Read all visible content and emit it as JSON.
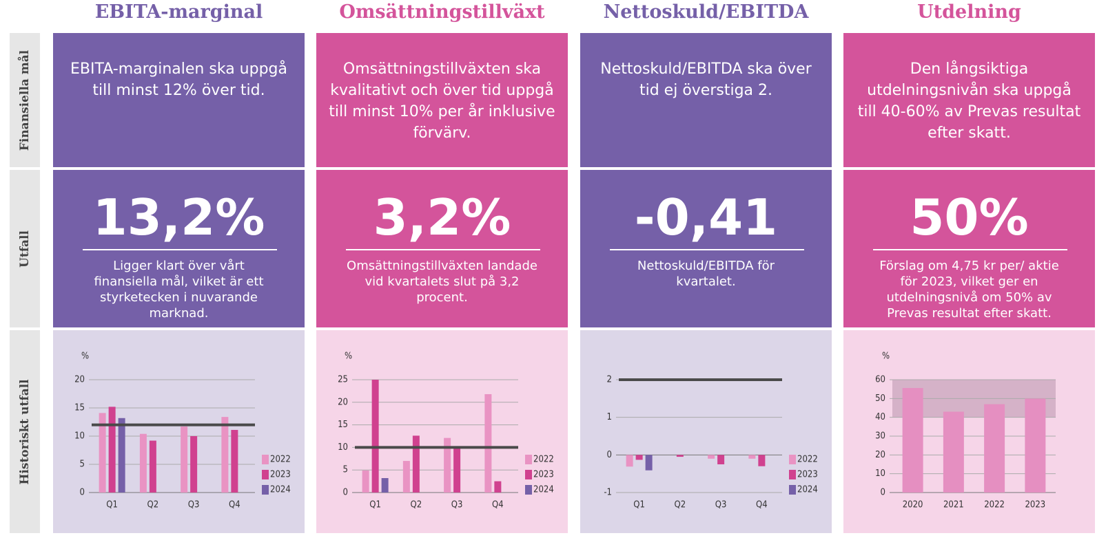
{
  "row_labels": [
    "Finansiella mål",
    "Utfall",
    "Historiskt utfall"
  ],
  "columns": [
    {
      "title": "EBITA-marginal",
      "goal": "EBITA-marginalen ska uppgå till minst 12% över tid.",
      "outcome": "13,2%",
      "outcome_text": "Ligger klart över vårt finansiella mål, vilket är ett styrketecken i nuvarande marknad."
    },
    {
      "title": "Omsättningstillväxt",
      "goal": "Omsättningstillväxten ska kvalitativt och över tid uppgå till minst 10% per år inklusive förvärv.",
      "outcome": "3,2%",
      "outcome_text": "Omsättningstillväxten landade vid kvartalets slut på 3,2 procent."
    },
    {
      "title": "Nettoskuld/EBITDA",
      "goal": "Nettoskuld/EBITDA ska över tid ej överstiga 2.",
      "outcome": "-0,41",
      "outcome_text": "Nettoskuld/EBITDA för kvartalet."
    },
    {
      "title": "Utdelning",
      "goal": "Den långsiktiga utdelningsnivån ska uppgå till 40-60% av Prevas resultat efter skatt.",
      "outcome": "50%",
      "outcome_text": "Förslag om 4,75 kr per/ aktie för 2023, vilket ger en utdelningsnivå om 50% av Prevas resultat efter skatt."
    }
  ],
  "chart_data": [
    {
      "type": "bar",
      "y_label": "%",
      "categories": [
        "Q1",
        "Q2",
        "Q3",
        "Q4"
      ],
      "series": [
        {
          "name": "2022",
          "color": "#e993c3",
          "values": [
            14.1,
            10.4,
            11.7,
            13.4
          ]
        },
        {
          "name": "2023",
          "color": "#d0418f",
          "values": [
            15.2,
            9.2,
            10.0,
            11.1
          ]
        },
        {
          "name": "2024",
          "color": "#7560a8",
          "values": [
            13.2,
            null,
            null,
            null
          ]
        }
      ],
      "ylim": [
        0,
        20
      ],
      "yticks": [
        0,
        5,
        10,
        15,
        20
      ],
      "grid": true,
      "target": 12
    },
    {
      "type": "bar",
      "y_label": "%",
      "categories": [
        "Q1",
        "Q2",
        "Q3",
        "Q4"
      ],
      "series": [
        {
          "name": "2022",
          "color": "#e993c3",
          "values": [
            4.9,
            7.0,
            12.1,
            21.8
          ]
        },
        {
          "name": "2023",
          "color": "#d0418f",
          "values": [
            25,
            12.6,
            10.0,
            2.5
          ]
        },
        {
          "name": "2024",
          "color": "#7560a8",
          "values": [
            3.2,
            null,
            null,
            null
          ]
        }
      ],
      "ylim": [
        0,
        25
      ],
      "yticks": [
        0,
        5,
        10,
        15,
        20,
        25
      ],
      "grid": true,
      "target": 10
    },
    {
      "type": "bar",
      "categories": [
        "Q1",
        "Q2",
        "Q3",
        "Q4"
      ],
      "series": [
        {
          "name": "2022",
          "color": "#e993c3",
          "values": [
            -0.31,
            0,
            -0.1,
            -0.1
          ]
        },
        {
          "name": "2023",
          "color": "#d0418f",
          "values": [
            -0.13,
            -0.05,
            -0.25,
            -0.3
          ]
        },
        {
          "name": "2024",
          "color": "#7560a8",
          "values": [
            -0.41,
            null,
            null,
            null
          ]
        }
      ],
      "ylim": [
        -1,
        2
      ],
      "yticks": [
        -1,
        0,
        1,
        2
      ],
      "grid": true,
      "target": 2
    },
    {
      "type": "bar",
      "y_label": "%",
      "categories": [
        "2020",
        "2021",
        "2022",
        "2023"
      ],
      "series": [
        {
          "color": "#e58fc1",
          "values": [
            55.6,
            43,
            47,
            50
          ]
        }
      ],
      "ylim": [
        0,
        60
      ],
      "yticks": [
        0,
        10,
        20,
        30,
        40,
        50,
        60
      ],
      "grid": true,
      "target_range": [
        40,
        60
      ]
    }
  ]
}
